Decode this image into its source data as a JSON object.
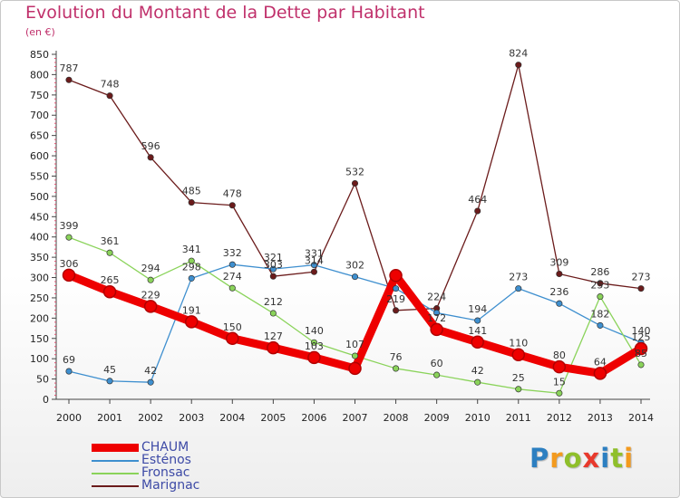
{
  "title": "Evolution du Montant de la Dette par Habitant",
  "subtitle": "(en €)",
  "logo": {
    "text": "Proxiti",
    "letter_colors": [
      "#2c7fc1",
      "#f39a1e",
      "#8fbf2b",
      "#e8392c",
      "#2c7fc1",
      "#8fbf2b",
      "#f39a1e"
    ]
  },
  "chart_data": {
    "type": "line",
    "title": "Evolution du Montant de la Dette par Habitant",
    "subtitle": "(en €)",
    "x": [
      "2000",
      "2001",
      "2002",
      "2003",
      "2004",
      "2005",
      "2006",
      "2007",
      "2008",
      "2009",
      "2010",
      "2011",
      "2012",
      "2013",
      "2014"
    ],
    "ylim": [
      0,
      850
    ],
    "yticks": [
      0,
      50,
      100,
      150,
      200,
      250,
      300,
      350,
      400,
      450,
      500,
      550,
      600,
      650,
      700,
      750,
      800,
      850
    ],
    "grid": false,
    "legend_position": "bottom-left",
    "series": [
      {
        "name": "CHAUM",
        "color": "#ee0000",
        "values": [
          306,
          265,
          229,
          191,
          150,
          127,
          103,
          76,
          305,
          172,
          141,
          110,
          80,
          64,
          125
        ],
        "labels": [
          "306",
          "265",
          "229",
          "191",
          "150",
          "127",
          "103",
          "",
          "",
          "172",
          "141",
          "110",
          "80",
          "64",
          "125"
        ]
      },
      {
        "name": "Esténos",
        "color": "#3e8fcf",
        "values": [
          69,
          45,
          42,
          298,
          332,
          321,
          331,
          302,
          273,
          213,
          194,
          273,
          236,
          182,
          140
        ],
        "labels": [
          "69",
          "45",
          "42",
          "298",
          "332",
          "321",
          "331",
          "302",
          "",
          "",
          "194",
          "273",
          "236",
          "182",
          "140"
        ]
      },
      {
        "name": "Fronsac",
        "color": "#8ad35a",
        "values": [
          399,
          361,
          294,
          341,
          274,
          212,
          140,
          107,
          76,
          60,
          42,
          25,
          15,
          253,
          85
        ],
        "labels": [
          "399",
          "361",
          "294",
          "341",
          "274",
          "212",
          "140",
          "107",
          "76",
          "60",
          "42",
          "25",
          "15",
          "253",
          "85"
        ]
      },
      {
        "name": "Marignac",
        "color": "#6b1b1b",
        "values": [
          787,
          748,
          596,
          485,
          478,
          303,
          314,
          532,
          219,
          224,
          464,
          824,
          309,
          286,
          273
        ],
        "labels": [
          "787",
          "748",
          "596",
          "485",
          "478",
          "303",
          "314",
          "532",
          "219",
          "224",
          "464",
          "824",
          "309",
          "286",
          "273"
        ]
      }
    ]
  }
}
